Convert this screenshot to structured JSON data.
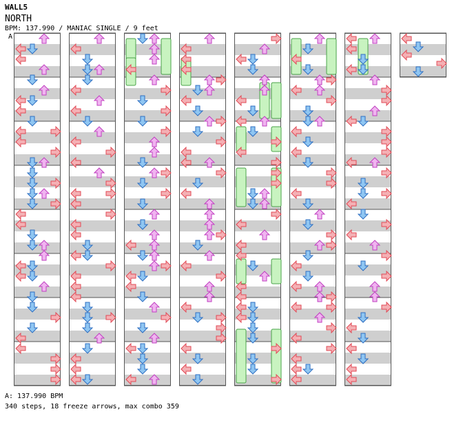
{
  "header": {
    "title": "WALL5",
    "song": "NORTH",
    "info": "BPM: 137.990 / MANIAC SINGLE / 9 feet",
    "marker": "A"
  },
  "footer": {
    "bpm_line": "A: 137.990 BPM",
    "stats_line": "340 steps, 18 freeze arrows, max combo 359"
  },
  "colors": {
    "left": "#f4b0b4",
    "left_stroke": "#e24a56",
    "down": "#8fc6f2",
    "down_stroke": "#2f6fc1",
    "up": "#f0b4f0",
    "up_stroke": "#c040c0",
    "freeze": "#c8f3c0",
    "freeze_stroke": "#4aa34a",
    "stripe": "#cfcfcf"
  }
}
